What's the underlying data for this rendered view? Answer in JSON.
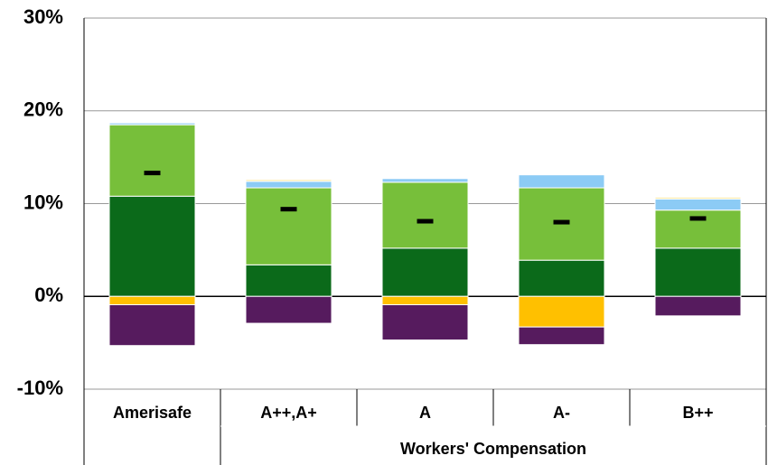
{
  "chart_data": {
    "type": "stacked_bar",
    "categories": [
      "Amerisafe",
      "A++,A+",
      "A",
      "A-",
      "B++"
    ],
    "group_label": "Workers' Compensation",
    "series": [
      {
        "color": "#0b6a1a",
        "values": [
          10.8,
          3.4,
          5.2,
          3.9,
          5.2
        ]
      },
      {
        "color": "#77bf3a",
        "values": [
          7.7,
          8.3,
          7.1,
          7.8,
          4.1
        ]
      },
      {
        "color": "#8ccbf5",
        "values": [
          0.2,
          0.7,
          0.4,
          1.4,
          1.2
        ]
      },
      {
        "color": "#fde9a6",
        "values": [
          0,
          0.2,
          0,
          0,
          0.2
        ]
      },
      {
        "color": "#ffc000",
        "values": [
          -0.9,
          0,
          -0.9,
          -3.3,
          0
        ]
      },
      {
        "color": "#561b5e",
        "values": [
          -4.4,
          -2.9,
          -3.8,
          -1.9,
          -2.1
        ]
      }
    ],
    "markers": {
      "color": "#000000",
      "values": [
        13.3,
        9.4,
        8.1,
        8.0,
        8.4
      ]
    },
    "ylim": [
      -10,
      30
    ],
    "yticks": [
      {
        "value": -10,
        "label": "-10%"
      },
      {
        "value": 0,
        "label": "0%"
      },
      {
        "value": 10,
        "label": "10%"
      },
      {
        "value": 20,
        "label": "20%"
      },
      {
        "value": 30,
        "label": "30%"
      }
    ],
    "grid": true
  }
}
